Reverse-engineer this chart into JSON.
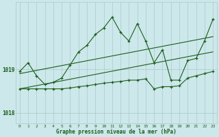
{
  "title": "Graphe pression niveau de la mer (hPa)",
  "bg_color": "#cce8ea",
  "grid_color": "#aac8cc",
  "line_color": "#1a5c1a",
  "xlim": [
    -0.5,
    23.5
  ],
  "ylim": [
    1017.75,
    1020.55
  ],
  "yticks": [
    1018,
    1019
  ],
  "x_labels": [
    "0",
    "1",
    "2",
    "3",
    "4",
    "5",
    "6",
    "7",
    "8",
    "9",
    "10",
    "11",
    "12",
    "13",
    "14",
    "15",
    "16",
    "17",
    "18",
    "19",
    "20",
    "21",
    "22",
    "23"
  ],
  "series1": [
    1018.95,
    1019.15,
    1018.85,
    1018.65,
    1018.7,
    1018.8,
    1019.1,
    1019.4,
    1019.55,
    1019.8,
    1019.95,
    1020.2,
    1019.85,
    1019.65,
    1020.05,
    1019.65,
    1019.15,
    1019.45,
    1018.75,
    1018.75,
    1019.2,
    1019.25,
    1019.65,
    1020.15
  ],
  "series2": [
    1018.55,
    1018.55,
    1018.55,
    1018.55,
    1018.55,
    1018.55,
    1018.57,
    1018.6,
    1018.62,
    1018.65,
    1018.68,
    1018.7,
    1018.72,
    1018.75,
    1018.75,
    1018.78,
    1018.55,
    1018.6,
    1018.6,
    1018.62,
    1018.8,
    1018.85,
    1018.9,
    1018.95
  ],
  "trend1_x": [
    0,
    23
  ],
  "trend1_y": [
    1018.9,
    1019.75
  ],
  "trend2_x": [
    0,
    23
  ],
  "trend2_y": [
    1018.55,
    1019.4
  ]
}
